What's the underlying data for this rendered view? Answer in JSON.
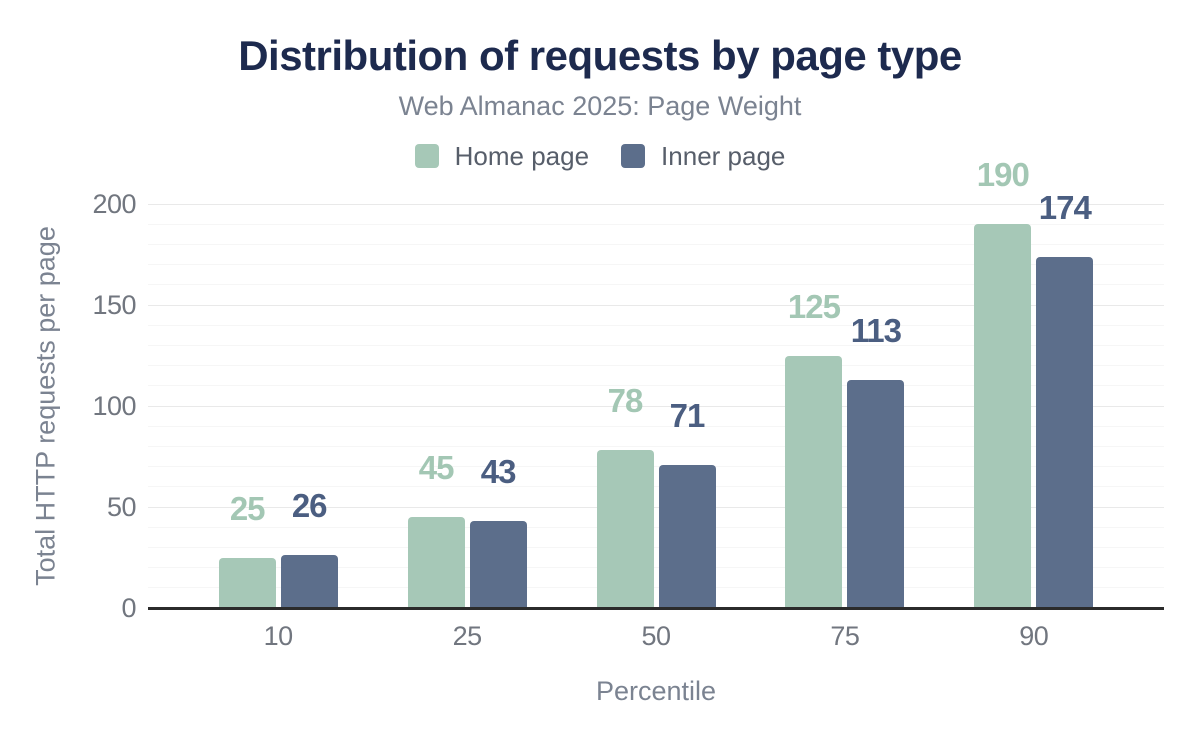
{
  "chart_data": {
    "type": "bar",
    "title": "Distribution of requests by page type",
    "subtitle": "Web Almanac 2025: Page Weight",
    "xlabel": "Percentile",
    "ylabel": "Total HTTP requests per page",
    "categories": [
      "10",
      "25",
      "50",
      "75",
      "90"
    ],
    "series": [
      {
        "name": "Home page",
        "values": [
          25,
          45,
          78,
          125,
          190
        ],
        "color": "#a6c8b7",
        "label_color": "#a3c7b4"
      },
      {
        "name": "Inner page",
        "values": [
          26,
          43,
          71,
          113,
          174
        ],
        "color": "#5c6e8b",
        "label_color": "#4b5e81"
      }
    ],
    "ylim": [
      0,
      200
    ],
    "yticks": [
      0,
      50,
      100,
      150,
      200
    ],
    "ytick_minor_step": 10,
    "grid": true,
    "legend_position": "top"
  },
  "style": {
    "background": "#ffffff",
    "title_color": "#1d2a4e",
    "subtitle_color": "#7b8391",
    "legend_text_color": "#575e6a",
    "tick_color": "#71767f",
    "axis_title_color": "#7b8391",
    "axis_line_color": "#2b2b2b",
    "gridline_major_color": "#e9e9e9",
    "gridline_minor_color": "#f6f6f6"
  }
}
